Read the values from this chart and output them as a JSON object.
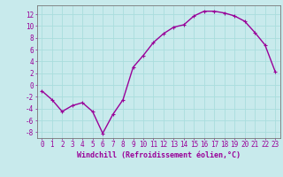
{
  "x": [
    0,
    1,
    2,
    3,
    4,
    5,
    6,
    7,
    8,
    9,
    10,
    11,
    12,
    13,
    14,
    15,
    16,
    17,
    18,
    19,
    20,
    21,
    22,
    23
  ],
  "y": [
    -1,
    -2.5,
    -4.5,
    -3.5,
    -3,
    -4.5,
    -8.2,
    -5,
    -2.5,
    3,
    5,
    7.2,
    8.7,
    9.8,
    10.2,
    11.7,
    12.5,
    12.5,
    12.2,
    11.7,
    10.8,
    8.9,
    6.8,
    2.3
  ],
  "line_color": "#990099",
  "marker": "+",
  "marker_size": 3,
  "linewidth": 1.0,
  "xlabel": "Windchill (Refroidissement éolien,°C)",
  "xlabel_fontsize": 6,
  "xlim": [
    -0.5,
    23.5
  ],
  "ylim": [
    -9,
    13.5
  ],
  "yticks": [
    -8,
    -6,
    -4,
    -2,
    0,
    2,
    4,
    6,
    8,
    10,
    12
  ],
  "xtick_labels": [
    "0",
    "1",
    "2",
    "3",
    "4",
    "5",
    "6",
    "7",
    "8",
    "9",
    "10",
    "11",
    "12",
    "13",
    "14",
    "15",
    "16",
    "17",
    "18",
    "19",
    "20",
    "21",
    "22",
    "23"
  ],
  "grid_color": "#aadddd",
  "bg_color": "#c8eaec",
  "tick_fontsize": 5.5,
  "tick_color": "#990099",
  "label_color": "#990099",
  "spine_color": "#777777"
}
